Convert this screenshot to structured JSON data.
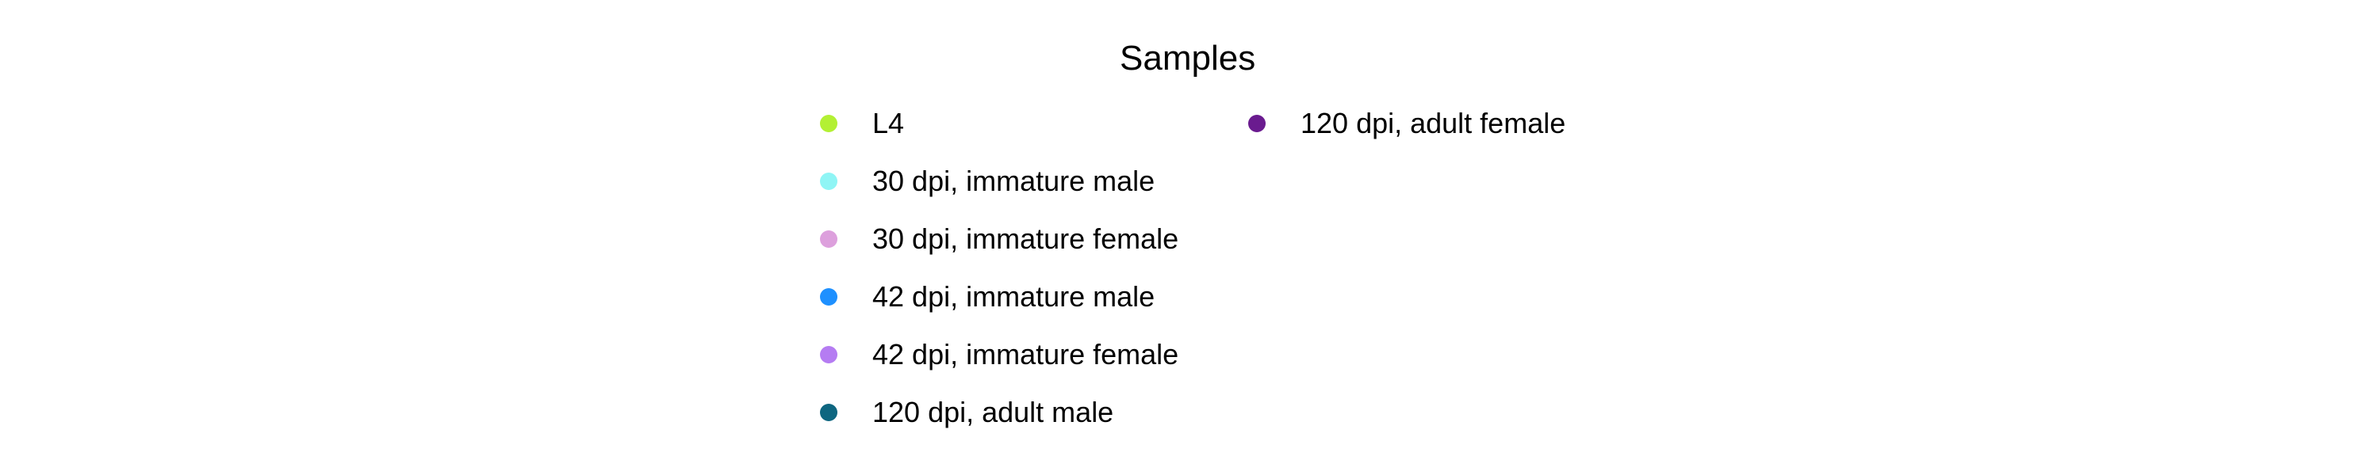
{
  "chart_data": {
    "type": "scatter",
    "legend": {
      "title": "Samples",
      "placement": "center",
      "columns": 2,
      "entries": [
        {
          "label": "L4",
          "color": "#b3f034",
          "marker": "circle"
        },
        {
          "label": "30 dpi, immature male",
          "color": "#8ff5f5",
          "marker": "circle"
        },
        {
          "label": "30 dpi, immature female",
          "color": "#dda0dd",
          "marker": "circle"
        },
        {
          "label": "42 dpi, immature male",
          "color": "#1e90ff",
          "marker": "circle"
        },
        {
          "label": "42 dpi, immature female",
          "color": "#b57cf2",
          "marker": "circle"
        },
        {
          "label": "120 dpi, adult male",
          "color": "#0e6680",
          "marker": "circle"
        },
        {
          "label": "120 dpi, adult female",
          "color": "#6a1b8f",
          "marker": "circle"
        }
      ]
    }
  }
}
